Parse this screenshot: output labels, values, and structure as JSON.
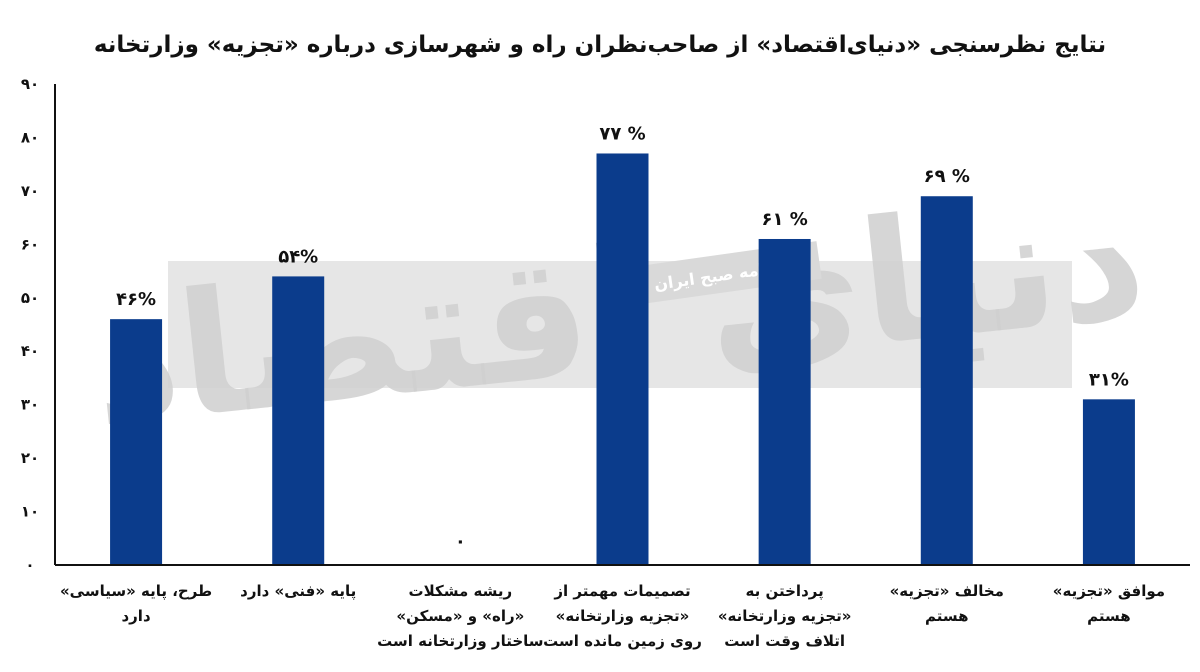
{
  "chart_data": {
    "type": "bar",
    "title": "نتایج نظرسنجی «دنیای‌اقتصاد» از صاحب‌نظران راه و شهرسازی درباره «تجزیه» وزارتخانه",
    "categories": [
      [
        "طرح، پایه «سیاسی»",
        "دارد"
      ],
      [
        "پایه «فنی» دارد"
      ],
      [
        "ریشه مشکلات",
        "«راه» و «مسکن»",
        "ساختار وزارتخانه است"
      ],
      [
        "تصمیمات مهمتر از",
        "«تجزیه وزارتخانه»",
        "روی زمین مانده است"
      ],
      [
        "پرداختن به",
        "«تجزیه وزارتخانه»",
        "اتلاف وقت است"
      ],
      [
        "مخالف «تجزیه»",
        "هستم"
      ],
      [
        "موافق «تجزیه»",
        "هستم"
      ]
    ],
    "values": [
      46,
      54,
      0,
      77,
      61,
      69,
      31
    ],
    "value_labels": [
      "۴۶%",
      "۵۴%",
      "۰",
      "۷۷ %",
      "۶۱ %",
      "۶۹ %",
      "۳۱%"
    ],
    "ylim": [
      0,
      90
    ],
    "yticks": [
      0,
      10,
      20,
      30,
      40,
      50,
      60,
      70,
      80,
      90
    ],
    "ytick_labels": [
      "۰",
      "۱۰",
      "۲۰",
      "۳۰",
      "۴۰",
      "۵۰",
      "۶۰",
      "۷۰",
      "۸۰",
      "۹۰"
    ],
    "xlabel": "",
    "ylabel": "",
    "grid": false,
    "bar_color": "#0b3c8c",
    "axis_color": "#111111"
  },
  "watermark": {
    "logo_text": "دنیای اقتصاد",
    "subtitle": "روزنامه صبح ایران"
  }
}
